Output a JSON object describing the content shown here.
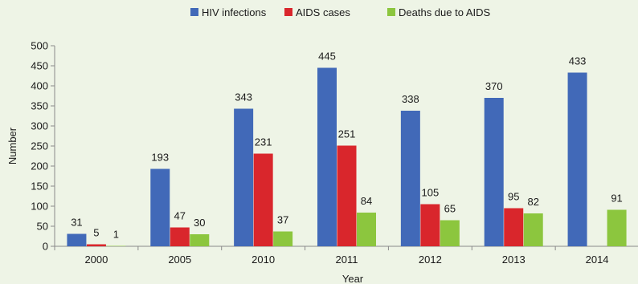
{
  "chart_data": {
    "type": "bar",
    "categories": [
      "2000",
      "2005",
      "2010",
      "2011",
      "2012",
      "2013",
      "2014"
    ],
    "series": [
      {
        "name": "HIV infections",
        "color": "#4169b8",
        "values": [
          31,
          193,
          343,
          445,
          338,
          370,
          433
        ]
      },
      {
        "name": "AIDS cases",
        "color": "#d9262c",
        "values": [
          5,
          47,
          231,
          251,
          105,
          95,
          null
        ]
      },
      {
        "name": "Deaths due to AIDS",
        "color": "#8cc63e",
        "values": [
          1,
          30,
          37,
          84,
          65,
          82,
          91
        ]
      }
    ],
    "xlabel": "Year",
    "ylabel": "Number",
    "ylim": [
      0,
      500
    ],
    "yticks": [
      0,
      50,
      100,
      150,
      200,
      250,
      300,
      350,
      400,
      450,
      500
    ],
    "legend_position": "top-center",
    "grid": false
  }
}
